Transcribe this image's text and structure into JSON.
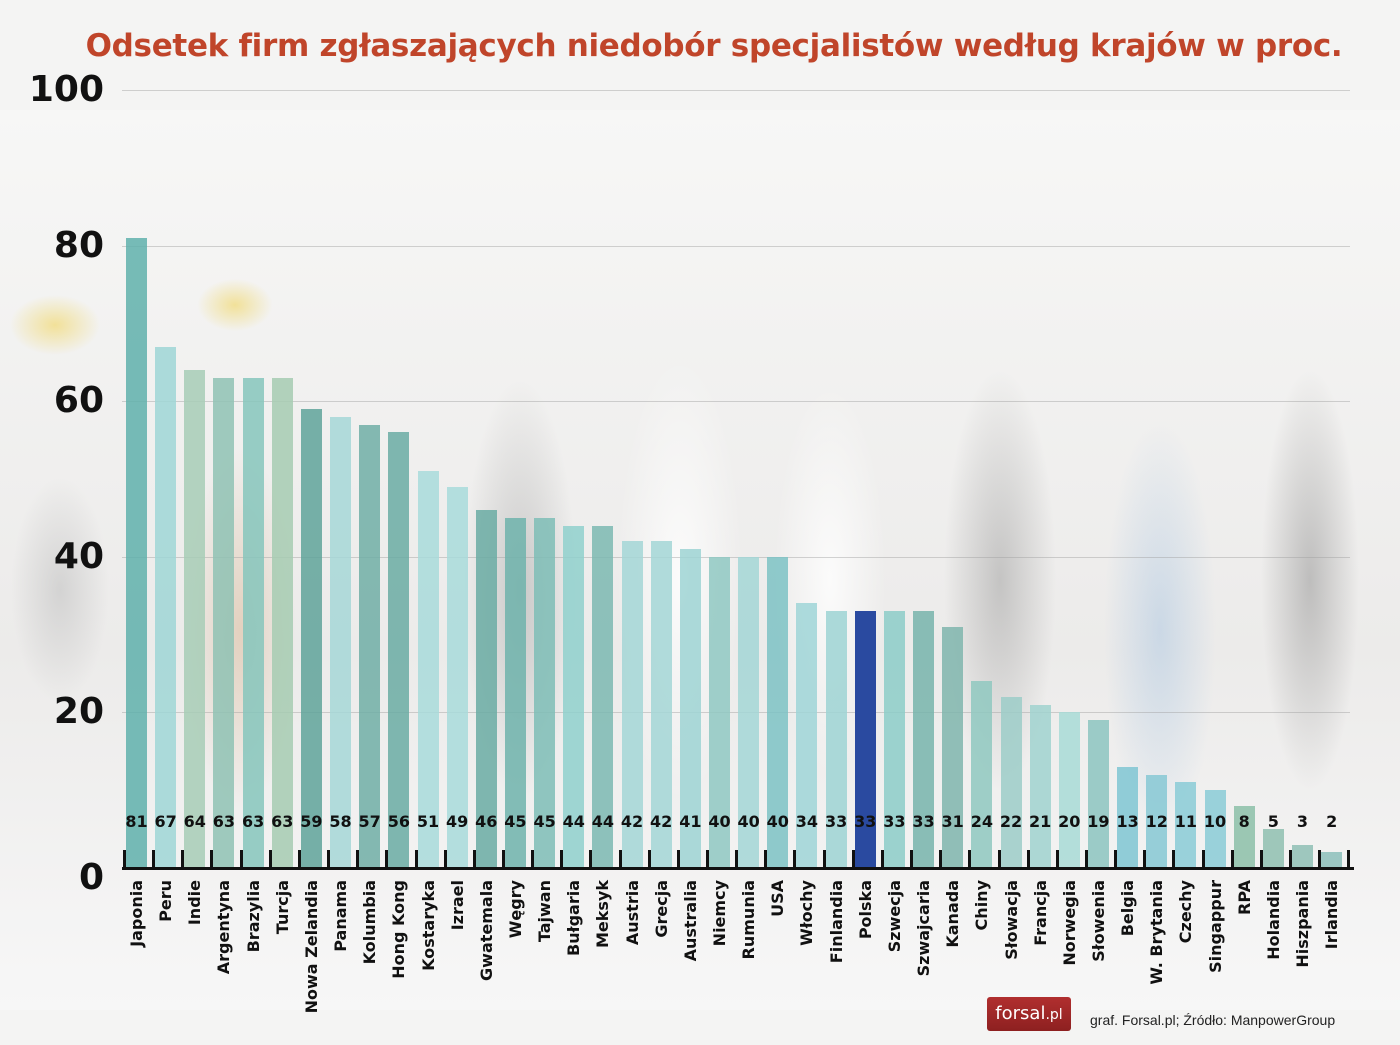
{
  "chart_data": {
    "type": "bar",
    "title": "Odsetek firm zgłaszających niedobór specjalistów według krajów w proc.",
    "xlabel": "",
    "ylabel": "",
    "ylim": [
      0,
      100
    ],
    "yticks": [
      0,
      20,
      40,
      60,
      80,
      100
    ],
    "grid": true,
    "legend": null,
    "categories": [
      "Japonia",
      "Peru",
      "Indie",
      "Argentyna",
      "Brazylia",
      "Turcja",
      "Nowa Zelandia",
      "Panama",
      "Kolumbia",
      "Hong Kong",
      "Kostaryka",
      "Izrael",
      "Gwatemala",
      "Węgry",
      "Tajwan",
      "Bułgaria",
      "Meksyk",
      "Austria",
      "Grecja",
      "Australia",
      "Niemcy",
      "Rumunia",
      "USA",
      "Włochy",
      "Finlandia",
      "Polska",
      "Szwecja",
      "Szwajcaria",
      "Kanada",
      "Chiny",
      "Słowacja",
      "Francja",
      "Norwegia",
      "Słowenia",
      "Belgia",
      "W. Brytania",
      "Czechy",
      "Singappur",
      "RPA",
      "Holandia",
      "Hiszpania",
      "Irlandia"
    ],
    "values": [
      81,
      67,
      64,
      63,
      63,
      63,
      59,
      58,
      57,
      56,
      51,
      49,
      46,
      45,
      45,
      44,
      44,
      42,
      42,
      41,
      40,
      40,
      40,
      34,
      33,
      33,
      33,
      33,
      31,
      24,
      22,
      21,
      20,
      19,
      13,
      12,
      11,
      10,
      8,
      5,
      3,
      2
    ],
    "highlight": {
      "category": "Polska",
      "color": "#2a4aa0"
    },
    "bar_colors": [
      "#5fb0ac",
      "#9fd6d6",
      "#a7cdb6",
      "#8fc2b4",
      "#86c6bc",
      "#a6cbb2",
      "#5fa39a",
      "#a6d7d7",
      "#70aea6",
      "#6aaba3",
      "#a8dada",
      "#a8dada",
      "#6aaba3",
      "#6fb3ab",
      "#7ebdb6",
      "#8fd0cc",
      "#7bb9b1",
      "#a3d6d6",
      "#a3d6d6",
      "#9ed3d3",
      "#8fc8c2",
      "#a3d6d6",
      "#7dc2c4",
      "#9fd5d7",
      "#9ed3d3",
      "#2a4aa0",
      "#8ccdc8",
      "#77b4ac",
      "#7fb5ad",
      "#8fc8c0",
      "#9ccdc8",
      "#a0d2cf",
      "#a8dad6",
      "#8cc4bf",
      "#7fc6d2",
      "#86c8d4",
      "#8acbd6",
      "#8acbd6",
      "#8cbfa8",
      "#8fc0b0",
      "#8fbfb5",
      "#8cbfbb"
    ]
  },
  "footer": {
    "logo_main": "forsal",
    "logo_suffix": ".pl",
    "source": "graf. Forsal.pl; Źródło: ManpowerGroup"
  }
}
